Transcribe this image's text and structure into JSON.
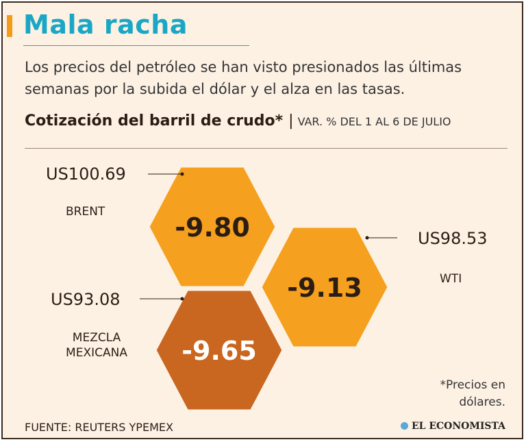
{
  "header": {
    "title": "Mala racha",
    "subtitle": "Los precios del petróleo se han visto presionados las últimas semanas por la subida el dólar y el alza en las tasas."
  },
  "chart_data": {
    "type": "other",
    "title": "Cotización del barril de crudo*",
    "subtitle": "VAR. % DEL 1 AL 6 DE JULIO",
    "series": [
      {
        "name": "BRENT",
        "price": "US100.69",
        "value": -9.8,
        "label": "-9.80",
        "color": "#f5a01e"
      },
      {
        "name": "WTI",
        "price": "US98.53",
        "value": -9.13,
        "label": "-9.13",
        "color": "#f5a01e"
      },
      {
        "name": "MEZCLA MEXICANA",
        "price": "US93.08",
        "value": -9.65,
        "label": "-9.65",
        "color": "#c9661f"
      }
    ]
  },
  "footer": {
    "note": "*Precios en dólares.",
    "source": "FUENTE: REUTERS YPEMEX",
    "brand": "EL ECONOMISTA"
  },
  "colors": {
    "title": "#1aa7c5",
    "accent": "#f39c1c",
    "background": "#fdf1e4",
    "hex_light": "#f5a01e",
    "hex_dark": "#c9661f"
  }
}
